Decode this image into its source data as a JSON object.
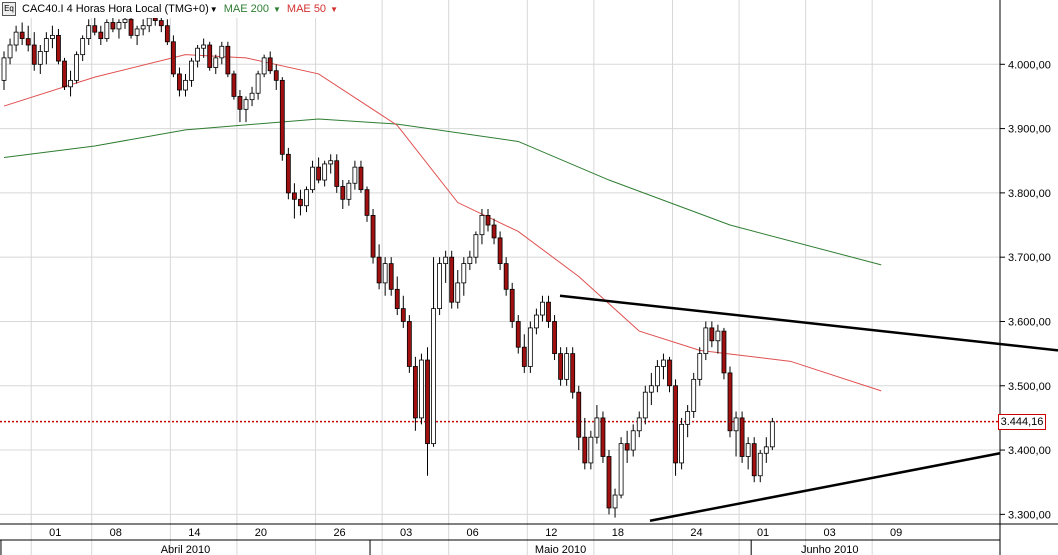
{
  "header": {
    "symbol_label": "CAC40.I 4 Horas Hora Local (TMG+0)",
    "mae200_label": "MAE 200",
    "mae50_label": "MAE 50",
    "equity_icon": "Eq"
  },
  "colors": {
    "candle_up": "#ffffff",
    "candle_down": "#a01010",
    "wick": "#000000",
    "mae200": "#2e7d32",
    "mae50": "#e05050",
    "last_price_line": "#cc0000",
    "trendline": "#000000",
    "grid": "#d8d8d8"
  },
  "chart_data": {
    "type": "candlestick",
    "y_axis_side": "right",
    "ylim": [
      3285,
      4100
    ],
    "y_ticks": [
      {
        "value": 4000,
        "label": "4.000,00"
      },
      {
        "value": 3900,
        "label": "3.900,00"
      },
      {
        "value": 3800,
        "label": "3.800,00"
      },
      {
        "value": 3700,
        "label": "3.700,00"
      },
      {
        "value": 3600,
        "label": "3.600,00"
      },
      {
        "value": 3500,
        "label": "3.500,00"
      },
      {
        "value": 3400,
        "label": "3.400,00"
      },
      {
        "value": 3300,
        "label": "3.300,00"
      }
    ],
    "last_price": {
      "value": 3444.16,
      "label": "3.444,16"
    },
    "x_ticks": [
      "01",
      "08",
      "14",
      "20",
      "26",
      "03",
      "06",
      "12",
      "18",
      "24",
      "01",
      "03",
      "09"
    ],
    "x_tick_index": [
      5,
      15,
      28,
      39,
      52,
      63,
      74,
      87,
      98,
      111,
      122,
      133,
      144
    ],
    "months": [
      {
        "label": "Abril 2010",
        "from": 0,
        "to": 61
      },
      {
        "label": "Maio 2010",
        "from": 61,
        "to": 124
      },
      {
        "label": "Junho 2010",
        "from": 124,
        "to": 145
      }
    ],
    "grid": true,
    "series": [
      {
        "name": "MAE 200",
        "kind": "line",
        "x": [
          0,
          15,
          30,
          52,
          65,
          85,
          100,
          120,
          145
        ],
        "values": [
          3855,
          3873,
          3898,
          3915,
          3907,
          3880,
          3820,
          3750,
          3688
        ]
      },
      {
        "name": "MAE 50",
        "kind": "line",
        "x": [
          0,
          15,
          30,
          40,
          52,
          65,
          75,
          85,
          95,
          105,
          115,
          130,
          145
        ],
        "values": [
          3935,
          3980,
          4015,
          4010,
          3985,
          3905,
          3785,
          3740,
          3670,
          3585,
          3555,
          3538,
          3492
        ]
      }
    ],
    "candles": [
      [
        3975,
        4020,
        3960,
        4010
      ],
      [
        4010,
        4040,
        4000,
        4030
      ],
      [
        4030,
        4060,
        4020,
        4050
      ],
      [
        4050,
        4065,
        4030,
        4040
      ],
      [
        4040,
        4060,
        4020,
        4030
      ],
      [
        4030,
        4050,
        3990,
        4000
      ],
      [
        4000,
        4030,
        3985,
        4020
      ],
      [
        4020,
        4050,
        4000,
        4040
      ],
      [
        4040,
        4060,
        4025,
        4045
      ],
      [
        4045,
        4055,
        4000,
        4005
      ],
      [
        4005,
        4010,
        3960,
        3965
      ],
      [
        3965,
        3990,
        3950,
        3975
      ],
      [
        3975,
        4020,
        3970,
        4015
      ],
      [
        4015,
        4045,
        4005,
        4040
      ],
      [
        4040,
        4070,
        4030,
        4060
      ],
      [
        4060,
        4075,
        4045,
        4050
      ],
      [
        4050,
        4060,
        4030,
        4040
      ],
      [
        4040,
        4070,
        4035,
        4065
      ],
      [
        4065,
        4080,
        4050,
        4055
      ],
      [
        4055,
        4070,
        4040,
        4065
      ],
      [
        4065,
        4080,
        4055,
        4070
      ],
      [
        4070,
        4080,
        4040,
        4045
      ],
      [
        4045,
        4060,
        4030,
        4055
      ],
      [
        4055,
        4070,
        4045,
        4060
      ],
      [
        4060,
        4080,
        4050,
        4072
      ],
      [
        4072,
        4085,
        4060,
        4068
      ],
      [
        4068,
        4080,
        4050,
        4060
      ],
      [
        4060,
        4070,
        4030,
        4035
      ],
      [
        4035,
        4045,
        3980,
        3985
      ],
      [
        3985,
        3995,
        3950,
        3960
      ],
      [
        3960,
        3985,
        3950,
        3975
      ],
      [
        3975,
        4010,
        3965,
        4005
      ],
      [
        4005,
        4030,
        3995,
        4025
      ],
      [
        4025,
        4040,
        4010,
        4030
      ],
      [
        4030,
        4035,
        3990,
        3995
      ],
      [
        3995,
        4015,
        3985,
        4010
      ],
      [
        4010,
        4035,
        4000,
        4028
      ],
      [
        4028,
        4035,
        3980,
        3985
      ],
      [
        3985,
        3990,
        3945,
        3950
      ],
      [
        3950,
        3960,
        3910,
        3930
      ],
      [
        3930,
        3950,
        3910,
        3945
      ],
      [
        3945,
        3965,
        3935,
        3955
      ],
      [
        3955,
        3990,
        3945,
        3985
      ],
      [
        3985,
        4015,
        3980,
        4010
      ],
      [
        4010,
        4020,
        3985,
        3990
      ],
      [
        3990,
        4000,
        3960,
        3975
      ],
      [
        3975,
        3980,
        3850,
        3860
      ],
      [
        3860,
        3870,
        3790,
        3800
      ],
      [
        3800,
        3815,
        3760,
        3790
      ],
      [
        3790,
        3805,
        3765,
        3780
      ],
      [
        3780,
        3810,
        3770,
        3805
      ],
      [
        3805,
        3850,
        3800,
        3840
      ],
      [
        3840,
        3855,
        3815,
        3820
      ],
      [
        3820,
        3850,
        3810,
        3845
      ],
      [
        3845,
        3860,
        3830,
        3850
      ],
      [
        3850,
        3860,
        3800,
        3810
      ],
      [
        3810,
        3820,
        3775,
        3790
      ],
      [
        3790,
        3820,
        3780,
        3815
      ],
      [
        3815,
        3850,
        3805,
        3840
      ],
      [
        3840,
        3850,
        3800,
        3805
      ],
      [
        3805,
        3810,
        3755,
        3765
      ],
      [
        3765,
        3775,
        3690,
        3700
      ],
      [
        3700,
        3720,
        3650,
        3660
      ],
      [
        3660,
        3700,
        3640,
        3690
      ],
      [
        3690,
        3700,
        3640,
        3650
      ],
      [
        3650,
        3670,
        3610,
        3620
      ],
      [
        3620,
        3640,
        3590,
        3600
      ],
      [
        3600,
        3610,
        3520,
        3530
      ],
      [
        3530,
        3545,
        3430,
        3450
      ],
      [
        3450,
        3550,
        3440,
        3540
      ],
      [
        3540,
        3560,
        3360,
        3410
      ],
      [
        3410,
        3700,
        3405,
        3620
      ],
      [
        3620,
        3700,
        3610,
        3690
      ],
      [
        3690,
        3710,
        3660,
        3700
      ],
      [
        3700,
        3710,
        3620,
        3630
      ],
      [
        3630,
        3680,
        3620,
        3660
      ],
      [
        3660,
        3700,
        3640,
        3690
      ],
      [
        3690,
        3710,
        3680,
        3700
      ],
      [
        3700,
        3740,
        3690,
        3735
      ],
      [
        3735,
        3775,
        3720,
        3765
      ],
      [
        3765,
        3775,
        3740,
        3750
      ],
      [
        3750,
        3760,
        3720,
        3730
      ],
      [
        3730,
        3740,
        3680,
        3690
      ],
      [
        3690,
        3700,
        3640,
        3650
      ],
      [
        3650,
        3660,
        3590,
        3600
      ],
      [
        3600,
        3610,
        3550,
        3560
      ],
      [
        3560,
        3580,
        3520,
        3530
      ],
      [
        3530,
        3600,
        3520,
        3590
      ],
      [
        3590,
        3620,
        3580,
        3610
      ],
      [
        3610,
        3640,
        3600,
        3630
      ],
      [
        3630,
        3640,
        3590,
        3600
      ],
      [
        3600,
        3610,
        3540,
        3550
      ],
      [
        3550,
        3560,
        3500,
        3510
      ],
      [
        3510,
        3560,
        3500,
        3550
      ],
      [
        3550,
        3560,
        3480,
        3490
      ],
      [
        3490,
        3500,
        3400,
        3420
      ],
      [
        3420,
        3450,
        3370,
        3380
      ],
      [
        3380,
        3430,
        3370,
        3420
      ],
      [
        3420,
        3470,
        3410,
        3450
      ],
      [
        3450,
        3460,
        3380,
        3390
      ],
      [
        3390,
        3400,
        3300,
        3310
      ],
      [
        3310,
        3340,
        3295,
        3330
      ],
      [
        3330,
        3420,
        3325,
        3410
      ],
      [
        3410,
        3430,
        3380,
        3400
      ],
      [
        3400,
        3440,
        3390,
        3430
      ],
      [
        3430,
        3460,
        3420,
        3450
      ],
      [
        3450,
        3500,
        3440,
        3490
      ],
      [
        3490,
        3520,
        3470,
        3500
      ],
      [
        3500,
        3540,
        3490,
        3530
      ],
      [
        3530,
        3550,
        3510,
        3540
      ],
      [
        3540,
        3545,
        3490,
        3500
      ],
      [
        3500,
        3510,
        3360,
        3380
      ],
      [
        3380,
        3450,
        3370,
        3440
      ],
      [
        3440,
        3470,
        3420,
        3460
      ],
      [
        3460,
        3520,
        3450,
        3510
      ],
      [
        3510,
        3560,
        3500,
        3550
      ],
      [
        3550,
        3600,
        3540,
        3590
      ],
      [
        3590,
        3600,
        3560,
        3570
      ],
      [
        3570,
        3595,
        3550,
        3585
      ],
      [
        3585,
        3590,
        3510,
        3520
      ],
      [
        3520,
        3530,
        3420,
        3430
      ],
      [
        3430,
        3460,
        3390,
        3450
      ],
      [
        3450,
        3460,
        3380,
        3390
      ],
      [
        3390,
        3420,
        3370,
        3410
      ],
      [
        3410,
        3420,
        3350,
        3360
      ],
      [
        3360,
        3400,
        3350,
        3395
      ],
      [
        3395,
        3420,
        3380,
        3405
      ],
      [
        3405,
        3450,
        3400,
        3444
      ]
    ]
  }
}
